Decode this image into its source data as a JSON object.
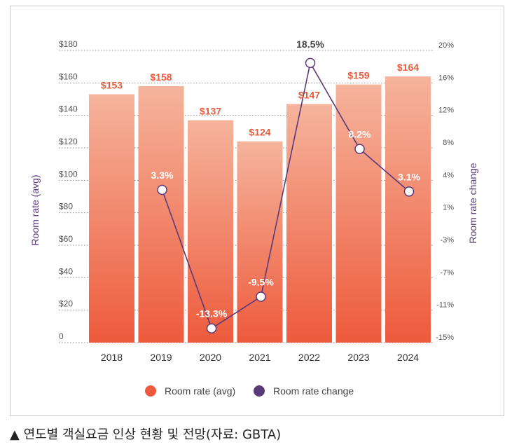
{
  "chart_data": {
    "type": "bar+line",
    "categories": [
      "2018",
      "2019",
      "2020",
      "2021",
      "2022",
      "2023",
      "2024"
    ],
    "series": [
      {
        "name": "Room rate (avg)",
        "type": "bar",
        "axis": "left",
        "values": [
          153,
          158,
          137,
          124,
          147,
          159,
          164
        ],
        "labels": [
          "$153",
          "$158",
          "$137",
          "$124",
          "$147",
          "$159",
          "$164"
        ]
      },
      {
        "name": "Room rate change",
        "type": "line",
        "axis": "right",
        "values": [
          null,
          3.3,
          -13.3,
          -9.5,
          18.5,
          8.2,
          3.1
        ],
        "labels": [
          "",
          "3.3%",
          "-13.3%",
          "-9.5%",
          "18.5%",
          "8.2%",
          "3.1%"
        ]
      }
    ],
    "ylabel_left": "Room rate (avg)",
    "ylabel_right": "Room rate change",
    "left_ticks": [
      "0",
      "$20",
      "$40",
      "$60",
      "$80",
      "$100",
      "$120",
      "$140",
      "$160",
      "$180"
    ],
    "left_ylim": [
      0,
      180
    ],
    "right_ticks": [
      "-15%",
      "-11%",
      "-7%",
      "-3%",
      "1%",
      "4%",
      "8%",
      "12%",
      "16%",
      "20%"
    ],
    "right_ylim": [
      -15,
      20
    ],
    "grid": "dotted-horizontal",
    "legend_position": "bottom",
    "colors": {
      "bar_top": "#f5b49c",
      "bar_bottom": "#ee5a3c",
      "line": "#5b3a7a",
      "bar_label": "#e95a3e",
      "legend_bar": "#ee5a3c",
      "legend_line": "#5b3a7a"
    }
  },
  "caption": "▲ 연도별 객실요금 인상 현황 및 전망(자료: GBTA)"
}
